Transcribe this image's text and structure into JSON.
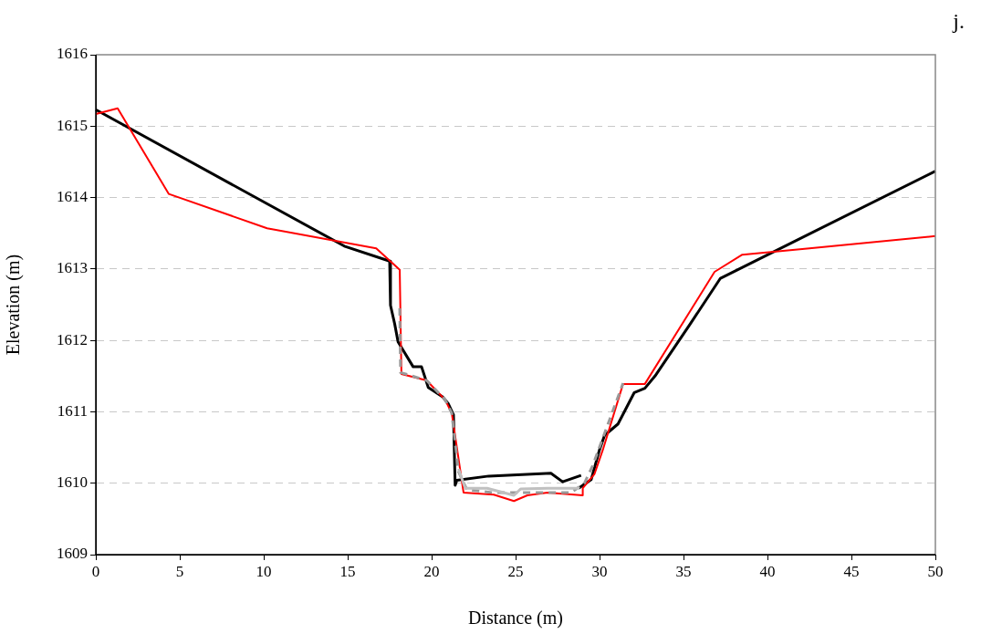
{
  "chart_data": {
    "type": "line",
    "xlabel": "Distance (m)",
    "ylabel": "Elevation (m)",
    "annotations": [
      "j."
    ],
    "xlim": [
      0,
      50
    ],
    "xticks": [
      0,
      5,
      10,
      15,
      20,
      25,
      30,
      35,
      40,
      45,
      50
    ],
    "ylim": [
      1609,
      1616
    ],
    "yticks": [
      1609,
      1610,
      1611,
      1612,
      1613,
      1614,
      1615,
      1616
    ],
    "grid": "y",
    "legend": false,
    "marker": "none",
    "series": [
      {
        "color": "#c0c0c0",
        "line_style": "solid",
        "x": [
          21.6,
          22.0,
          23.3,
          24.9,
          25.3,
          26.9,
          28.8
        ],
        "values": [
          1610.2,
          1609.93,
          1609.93,
          1609.83,
          1609.92,
          1609.93,
          1609.93
        ]
      },
      {
        "color": "#999999",
        "line_style": "dashed",
        "x": [
          18.1,
          18.15,
          19.7,
          20.8,
          21.2,
          21.6,
          22.1,
          23.6,
          28.3,
          29.1,
          29.6,
          30.3,
          31.4
        ],
        "values": [
          1612.45,
          1611.55,
          1611.44,
          1611.17,
          1610.98,
          1610.16,
          1609.91,
          1609.87,
          1609.87,
          1610.0,
          1610.25,
          1610.7,
          1611.4
        ]
      },
      {
        "color": "#ff0000",
        "line_style": "solid",
        "x": [
          0,
          1.3,
          4.35,
          10.2,
          16.7,
          18.1,
          18.2,
          19.7,
          20.8,
          21.2,
          21.9,
          23.7,
          24.9,
          25.7,
          26.9,
          29.0,
          29.0,
          29.7,
          30.2,
          31.4,
          32.7,
          36.85,
          38.5,
          42.5,
          50
        ],
        "values": [
          1615.17,
          1615.25,
          1614.05,
          1613.57,
          1613.29,
          1612.99,
          1611.53,
          1611.44,
          1611.17,
          1610.98,
          1609.87,
          1609.84,
          1609.75,
          1609.83,
          1609.87,
          1609.83,
          1609.93,
          1610.13,
          1610.47,
          1611.39,
          1611.39,
          1612.96,
          1613.2,
          1613.29,
          1613.46
        ]
      },
      {
        "color": "#000000",
        "line_style": "solid",
        "x": [
          0,
          14.8,
          17.5,
          17.55,
          17.8,
          18.0,
          18.9,
          19.4,
          19.8,
          20.65,
          21.0,
          21.3,
          21.4,
          21.5,
          23.4,
          27.1,
          27.8,
          28.9
        ],
        "values": [
          1615.23,
          1613.32,
          1613.11,
          1612.49,
          1612.23,
          1611.98,
          1611.63,
          1611.63,
          1611.34,
          1611.21,
          1611.11,
          1610.96,
          1609.97,
          1610.04,
          1610.1,
          1610.14,
          1610.02,
          1610.11
        ]
      },
      {
        "color": "#000000",
        "line_style": "solid",
        "x": [
          28.75,
          29.5,
          30.0,
          30.3,
          31.1,
          32.07,
          32.7,
          33.3,
          35.4,
          37.2,
          50
        ],
        "values": [
          1609.93,
          1610.05,
          1610.47,
          1610.67,
          1610.83,
          1611.27,
          1611.33,
          1611.5,
          1612.23,
          1612.87,
          1614.37
        ]
      }
    ]
  }
}
